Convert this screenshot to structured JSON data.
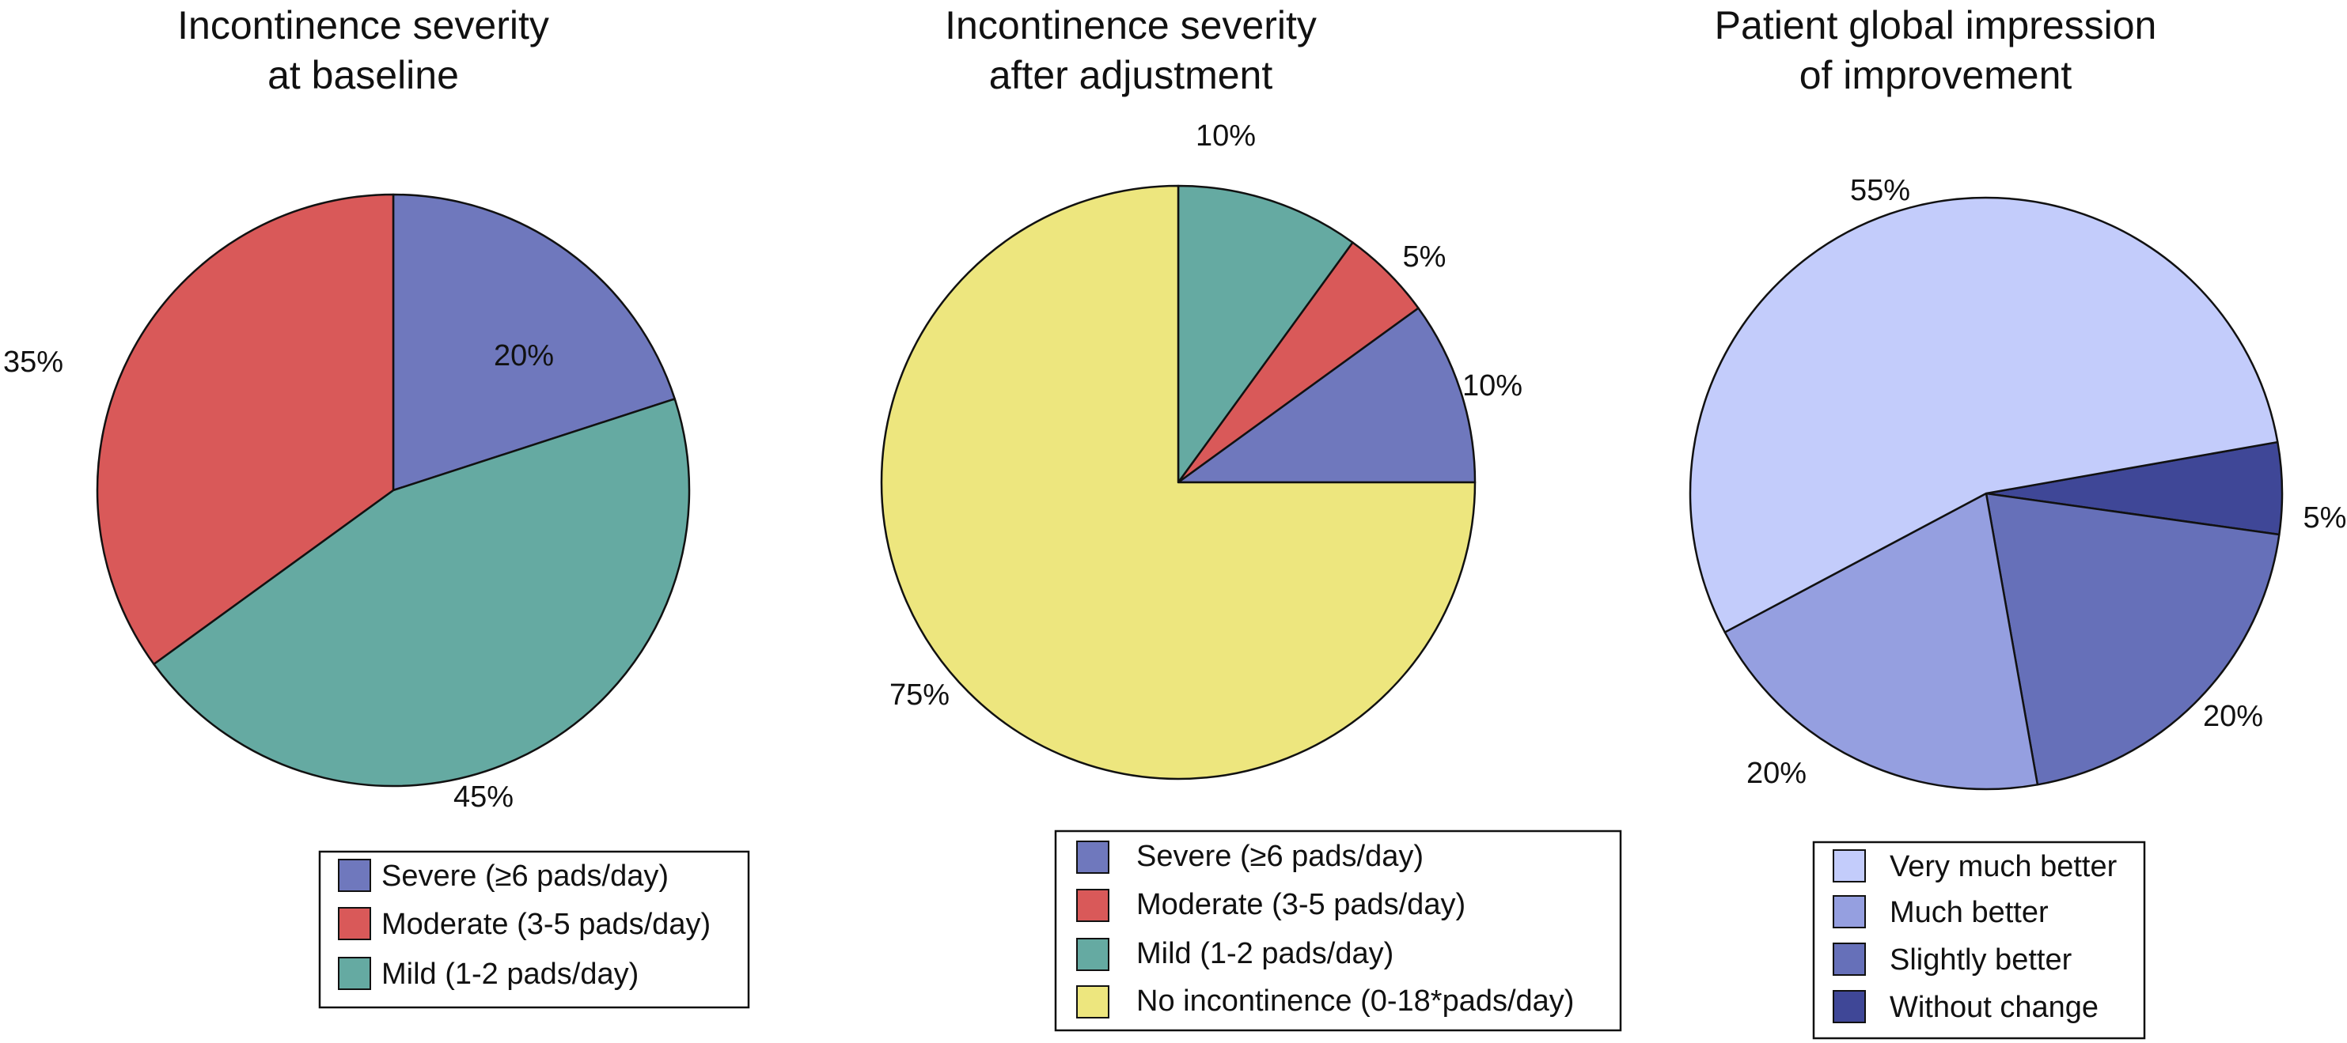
{
  "chart_data": [
    {
      "type": "pie",
      "title_lines": [
        "Incontinence severity",
        "at baseline"
      ],
      "start_angle_deg": 90,
      "direction": "clockwise",
      "slices": [
        {
          "label": "Severe (≥6 pads/day)",
          "value": 20,
          "value_label": "20%",
          "color": "#6f78bd"
        },
        {
          "label": "Mild (1-2 pads/day)",
          "value": 45,
          "value_label": "45%",
          "color": "#65aaa2"
        },
        {
          "label": "Moderate (3-5 pads/day)",
          "value": 35,
          "value_label": "35%",
          "color": "#d95959"
        }
      ],
      "legend": [
        {
          "label": "Severe (≥6 pads/day)",
          "color": "#6f78bd"
        },
        {
          "label": "Moderate (3-5 pads/day)",
          "color": "#d95959"
        },
        {
          "label": "Mild (1-2 pads/day)",
          "color": "#65aaa2"
        }
      ]
    },
    {
      "type": "pie",
      "title_lines": [
        "Incontinence severity",
        "after adjustment"
      ],
      "start_angle_deg": 0,
      "direction": "counterclockwise",
      "slices": [
        {
          "label": "Severe (≥6 pads/day)",
          "value": 10,
          "value_label": "10%",
          "color": "#6f78bd"
        },
        {
          "label": "Moderate (3-5 pads/day)",
          "value": 5,
          "value_label": "5%",
          "color": "#d95959"
        },
        {
          "label": "Mild (1-2 pads/day)",
          "value": 10,
          "value_label": "10%",
          "color": "#65aaa2"
        },
        {
          "label": "No incontinence (0-18*pads/day)",
          "value": 75,
          "value_label": "75%",
          "color": "#ede67e"
        }
      ],
      "legend": [
        {
          "label": "Severe (≥6 pads/day)",
          "color": "#6f78bd"
        },
        {
          "label": "Moderate (3-5 pads/day)",
          "color": "#d95959"
        },
        {
          "label": "Mild (1-2 pads/day)",
          "color": "#65aaa2"
        },
        {
          "label": "No incontinence (0-18*pads/day)",
          "color": "#ede67e"
        }
      ]
    },
    {
      "type": "pie",
      "title_lines": [
        "Patient global impression",
        "of improvement"
      ],
      "start_angle_deg": 10,
      "direction": "clockwise",
      "slices": [
        {
          "label": "Without change",
          "value": 5,
          "value_label": "5%",
          "color": "#3f4797"
        },
        {
          "label": "Slightly better",
          "value": 20,
          "value_label": "20%",
          "color": "#6670b9"
        },
        {
          "label": "Much better",
          "value": 20,
          "value_label": "20%",
          "color": "#959fe0"
        },
        {
          "label": "Very much better",
          "value": 55,
          "value_label": "55%",
          "color": "#c3ccfb"
        }
      ],
      "legend": [
        {
          "label": "Very much better",
          "color": "#c3ccfb"
        },
        {
          "label": "Much better",
          "color": "#959fe0"
        },
        {
          "label": "Slightly better",
          "color": "#6670b9"
        },
        {
          "label": "Without change",
          "color": "#3f4797"
        }
      ]
    }
  ]
}
